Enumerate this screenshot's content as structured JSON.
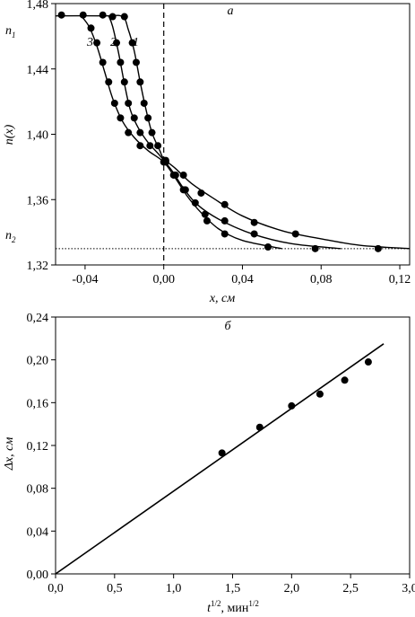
{
  "chart_data": [
    {
      "type": "line",
      "panel_label": "а",
      "xlabel": "x, см",
      "ylabel": "n(x)",
      "xlim": [
        -0.055,
        0.125
      ],
      "ylim": [
        1.32,
        1.48
      ],
      "xticks": [
        -0.04,
        0.0,
        0.04,
        0.08,
        0.12
      ],
      "xtick_labels": [
        "-0,04",
        "0,00",
        "0,04",
        "0,08",
        "0,12"
      ],
      "yticks": [
        1.32,
        1.36,
        1.4,
        1.44,
        1.48
      ],
      "ytick_labels": [
        "1,32",
        "1,36",
        "1,40",
        "1,44",
        "1,48"
      ],
      "reference_lines": {
        "n1": {
          "label": "n1",
          "label_main": "n",
          "label_sub": "1",
          "value": 1.473
        },
        "n2": {
          "label": "n2",
          "label_main": "n",
          "label_sub": "2",
          "value": 1.33,
          "style": "dotted"
        },
        "x0": {
          "value": 0.0,
          "style": "dashed"
        }
      },
      "series": [
        {
          "name": "1",
          "points": [
            [
              -0.052,
              1.473
            ],
            [
              -0.041,
              1.473
            ],
            [
              -0.031,
              1.473
            ],
            [
              -0.02,
              1.472
            ],
            [
              -0.016,
              1.456
            ],
            [
              -0.014,
              1.444
            ],
            [
              -0.012,
              1.432
            ],
            [
              -0.01,
              1.419
            ],
            [
              -0.008,
              1.41
            ],
            [
              -0.006,
              1.401
            ],
            [
              -0.003,
              1.393
            ],
            [
              0.001,
              1.384
            ],
            [
              0.01,
              1.375
            ],
            [
              0.019,
              1.364
            ],
            [
              0.031,
              1.357
            ],
            [
              0.046,
              1.346
            ],
            [
              0.067,
              1.339
            ],
            [
              0.109,
              1.33
            ]
          ],
          "curve": [
            [
              -0.055,
              1.4725
            ],
            [
              -0.03,
              1.4725
            ],
            [
              -0.021,
              1.472
            ],
            [
              -0.018,
              1.464
            ],
            [
              -0.015,
              1.451
            ],
            [
              -0.012,
              1.432
            ],
            [
              -0.009,
              1.415
            ],
            [
              -0.006,
              1.401
            ],
            [
              -0.002,
              1.39
            ],
            [
              0.0,
              1.385
            ],
            [
              0.006,
              1.379
            ],
            [
              0.014,
              1.37
            ],
            [
              0.025,
              1.361
            ],
            [
              0.04,
              1.35
            ],
            [
              0.06,
              1.341
            ],
            [
              0.08,
              1.336
            ],
            [
              0.1,
              1.332
            ],
            [
              0.125,
              1.33
            ]
          ]
        },
        {
          "name": "2",
          "points": [
            [
              -0.026,
              1.472
            ],
            [
              -0.024,
              1.456
            ],
            [
              -0.022,
              1.444
            ],
            [
              -0.02,
              1.432
            ],
            [
              -0.018,
              1.419
            ],
            [
              -0.015,
              1.41
            ],
            [
              -0.012,
              1.401
            ],
            [
              -0.007,
              1.393
            ],
            [
              0.001,
              1.383
            ],
            [
              0.006,
              1.375
            ],
            [
              0.011,
              1.366
            ],
            [
              0.021,
              1.351
            ],
            [
              0.031,
              1.347
            ],
            [
              0.046,
              1.339
            ],
            [
              0.077,
              1.33
            ]
          ],
          "curve": [
            [
              -0.028,
              1.4725
            ],
            [
              -0.026,
              1.466
            ],
            [
              -0.023,
              1.45
            ],
            [
              -0.02,
              1.431
            ],
            [
              -0.017,
              1.415
            ],
            [
              -0.013,
              1.404
            ],
            [
              -0.008,
              1.395
            ],
            [
              -0.002,
              1.387
            ],
            [
              0.004,
              1.378
            ],
            [
              0.01,
              1.367
            ],
            [
              0.017,
              1.357
            ],
            [
              0.028,
              1.348
            ],
            [
              0.045,
              1.339
            ],
            [
              0.065,
              1.333
            ],
            [
              0.09,
              1.33
            ]
          ]
        },
        {
          "name": "3",
          "points": [
            [
              -0.037,
              1.465
            ],
            [
              -0.034,
              1.456
            ],
            [
              -0.031,
              1.444
            ],
            [
              -0.028,
              1.432
            ],
            [
              -0.025,
              1.419
            ],
            [
              -0.022,
              1.41
            ],
            [
              -0.018,
              1.401
            ],
            [
              -0.012,
              1.393
            ],
            [
              0.0,
              1.383
            ],
            [
              0.005,
              1.375
            ],
            [
              0.01,
              1.366
            ],
            [
              0.016,
              1.358
            ],
            [
              0.022,
              1.347
            ],
            [
              0.031,
              1.339
            ],
            [
              0.053,
              1.331
            ]
          ],
          "curve": [
            [
              -0.042,
              1.4725
            ],
            [
              -0.038,
              1.466
            ],
            [
              -0.034,
              1.454
            ],
            [
              -0.03,
              1.438
            ],
            [
              -0.026,
              1.422
            ],
            [
              -0.021,
              1.408
            ],
            [
              -0.015,
              1.398
            ],
            [
              -0.008,
              1.39
            ],
            [
              0.0,
              1.383
            ],
            [
              0.006,
              1.373
            ],
            [
              0.012,
              1.362
            ],
            [
              0.019,
              1.352
            ],
            [
              0.028,
              1.342
            ],
            [
              0.04,
              1.335
            ],
            [
              0.06,
              1.33
            ]
          ]
        }
      ]
    },
    {
      "type": "scatter",
      "panel_label": "б",
      "xlabel": "t",
      "xlabel_sup": "1/2",
      "xlabel_rest": ", мин",
      "xlabel_rest_sup": "1/2",
      "ylabel": "Δx, см",
      "xlim": [
        0.0,
        3.0
      ],
      "ylim": [
        0.0,
        0.24
      ],
      "xticks": [
        0.0,
        0.5,
        1.0,
        1.5,
        2.0,
        2.5,
        3.0
      ],
      "xtick_labels": [
        "0,0",
        "0,5",
        "1,0",
        "1,5",
        "2,0",
        "2,5",
        "3,0"
      ],
      "yticks": [
        0.0,
        0.04,
        0.08,
        0.12,
        0.16,
        0.2,
        0.24
      ],
      "ytick_labels": [
        "0,00",
        "0,04",
        "0,08",
        "0,12",
        "0,16",
        "0,20",
        "0,24"
      ],
      "points": [
        [
          1.41,
          0.113
        ],
        [
          1.73,
          0.137
        ],
        [
          2.0,
          0.157
        ],
        [
          2.24,
          0.168
        ],
        [
          2.45,
          0.181
        ],
        [
          2.65,
          0.198
        ]
      ],
      "fit_line": [
        [
          0.0,
          0.0
        ],
        [
          2.78,
          0.215
        ]
      ]
    }
  ]
}
